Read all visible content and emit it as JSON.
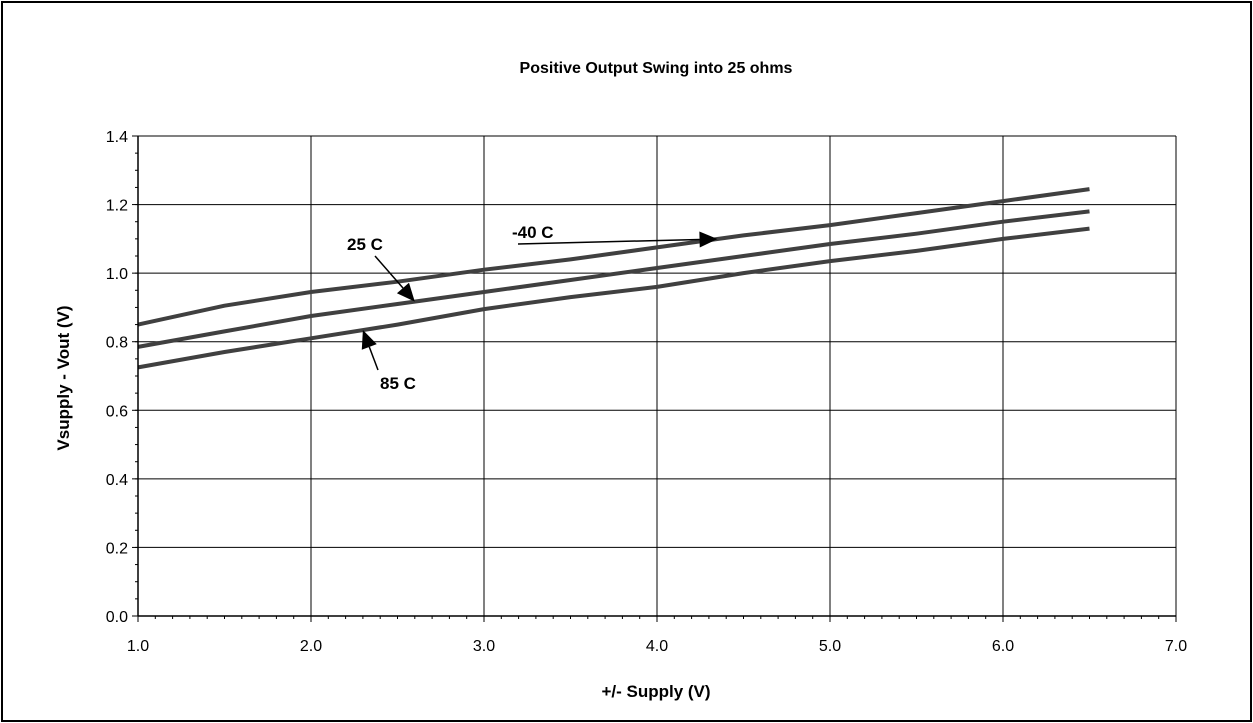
{
  "chart_data": {
    "type": "line",
    "title": "Positive Output Swing into 25 ohms",
    "xlabel": "+/- Supply (V)",
    "ylabel": "Vsupply - Vout (V)",
    "xlim": [
      1.0,
      7.0
    ],
    "ylim": [
      0.0,
      1.4
    ],
    "x_ticks": [
      "1.0",
      "2.0",
      "3.0",
      "4.0",
      "5.0",
      "6.0",
      "7.0"
    ],
    "y_ticks": [
      "0.0",
      "0.2",
      "0.4",
      "0.6",
      "0.8",
      "1.0",
      "1.2",
      "1.4"
    ],
    "grid": true,
    "line_color": "#404040",
    "series": [
      {
        "name": "-40 C",
        "x": [
          1.0,
          1.5,
          2.0,
          2.5,
          3.0,
          3.5,
          4.0,
          4.5,
          5.0,
          5.5,
          6.0,
          6.5
        ],
        "values": [
          0.85,
          0.905,
          0.945,
          0.975,
          1.01,
          1.04,
          1.075,
          1.11,
          1.14,
          1.175,
          1.21,
          1.245
        ]
      },
      {
        "name": "25 C",
        "x": [
          1.0,
          1.5,
          2.0,
          2.5,
          3.0,
          3.5,
          4.0,
          4.5,
          5.0,
          5.5,
          6.0,
          6.5
        ],
        "values": [
          0.785,
          0.83,
          0.875,
          0.91,
          0.945,
          0.98,
          1.015,
          1.05,
          1.085,
          1.115,
          1.15,
          1.18
        ]
      },
      {
        "name": "85 C",
        "x": [
          1.0,
          1.5,
          2.0,
          2.5,
          3.0,
          3.5,
          4.0,
          4.5,
          5.0,
          5.5,
          6.0,
          6.5
        ],
        "values": [
          0.725,
          0.77,
          0.81,
          0.85,
          0.895,
          0.93,
          0.96,
          1.0,
          1.035,
          1.065,
          1.1,
          1.13
        ]
      }
    ],
    "annotations": [
      {
        "label": "-40 C",
        "series": "-40 C"
      },
      {
        "label": "25 C",
        "series": "25 C"
      },
      {
        "label": "85 C",
        "series": "85 C"
      }
    ]
  }
}
